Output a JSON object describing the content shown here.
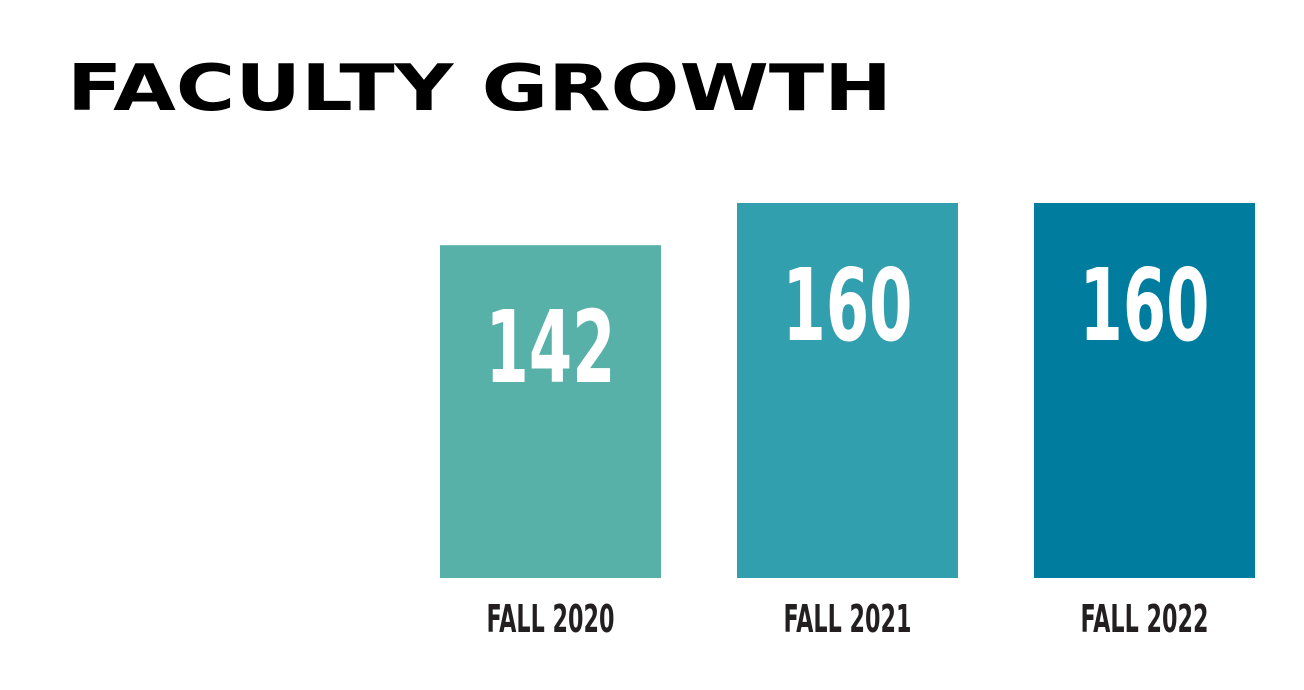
{
  "chart_data": {
    "type": "bar",
    "title": "FACULTY GROWTH",
    "categories": [
      "FALL 2020",
      "FALL 2021",
      "FALL 2022"
    ],
    "values": [
      142,
      160,
      160
    ],
    "colors": [
      "#58b1a8",
      "#319fae",
      "#007c9e"
    ]
  }
}
